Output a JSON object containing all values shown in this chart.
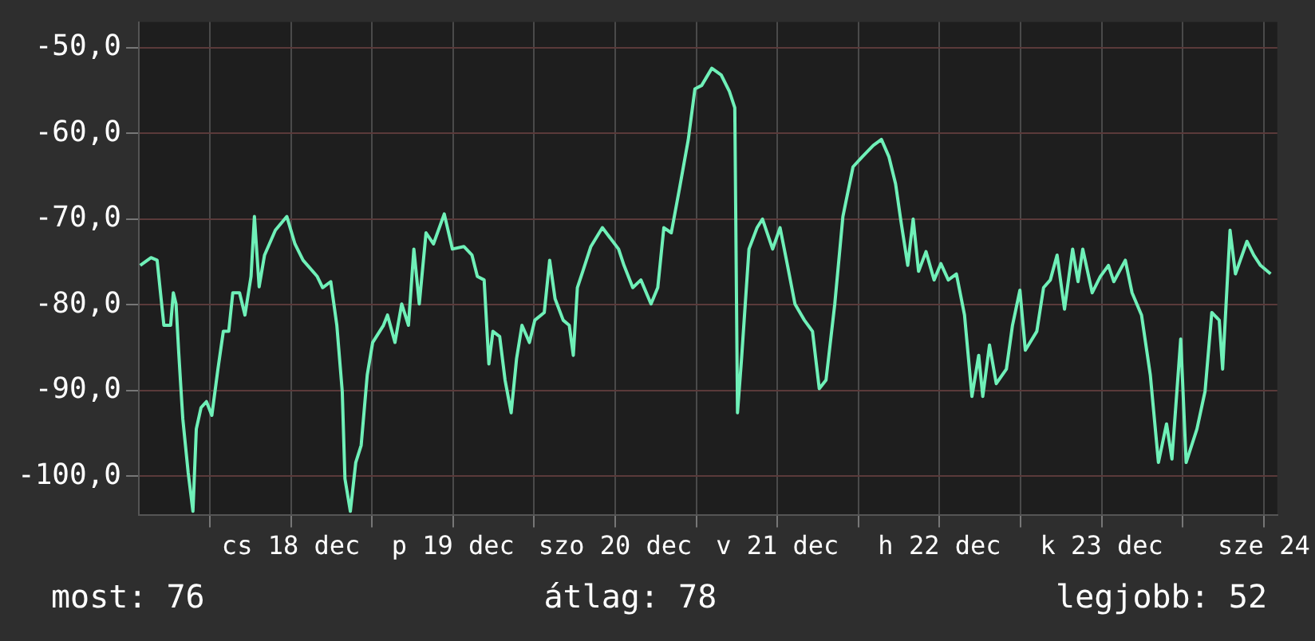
{
  "chart_data": {
    "type": "line",
    "x": [
      "--12-17T13:42",
      "--12-17T15:18",
      "--12-17T16:12",
      "--12-17T16:42",
      "--12-17T17:12",
      "--12-17T18:12",
      "--12-17T18:36",
      "--12-17T19:00",
      "--12-17T19:24",
      "--12-17T20:00",
      "--12-17T20:48",
      "--12-17T21:30",
      "--12-17T22:00",
      "--12-17T22:42",
      "--12-17T23:30",
      "--12-18T00:18",
      "--12-18T01:12",
      "--12-18T02:00",
      "--12-18T02:48",
      "--12-18T03:24",
      "--12-18T04:24",
      "--12-18T05:12",
      "--12-18T06:06",
      "--12-18T06:36",
      "--12-18T07:18",
      "--12-18T08:06",
      "--12-18T09:42",
      "--12-18T11:24",
      "--12-18T12:36",
      "--12-18T13:48",
      "--12-18T15:54",
      "--12-18T16:42",
      "--12-18T17:54",
      "--12-18T18:48",
      "--12-18T19:36",
      "--12-18T20:00",
      "--12-18T20:48",
      "--12-18T21:36",
      "--12-18T22:24",
      "--12-18T23:18",
      "--12-19T00:06",
      "--12-19T01:42",
      "--12-19T02:18",
      "--12-19T03:24",
      "--12-19T04:24",
      "--12-19T05:24",
      "--12-19T06:12",
      "--12-19T07:00",
      "--12-19T08:00",
      "--12-19T09:06",
      "--12-19T10:42",
      "--12-19T11:54",
      "--12-19T13:36",
      "--12-19T14:48",
      "--12-19T15:36",
      "--12-19T16:36",
      "--12-19T17:18",
      "--12-19T17:54",
      "--12-19T18:54",
      "--12-19T19:42",
      "--12-19T20:36",
      "--12-19T21:24",
      "--12-19T22:12",
      "--12-19T23:18",
      "--12-20T00:06",
      "--12-20T01:30",
      "--12-20T02:18",
      "--12-20T03:06",
      "--12-20T04:18",
      "--12-20T05:12",
      "--12-20T05:48",
      "--12-20T06:24",
      "--12-20T07:12",
      "--12-20T08:24",
      "--12-20T10:06",
      "--12-20T12:30",
      "--12-20T13:18",
      "--12-20T14:36",
      "--12-20T15:48",
      "--12-20T17:18",
      "--12-20T18:18",
      "--12-20T19:12",
      "--12-20T20:18",
      "--12-20T21:30",
      "--12-20T22:48",
      "--12-20T23:48",
      "--12-21T00:48",
      "--12-21T02:18",
      "--12-21T03:42",
      "--12-21T04:54",
      "--12-21T05:42",
      "--12-21T06:06",
      "--12-21T06:42",
      "--12-21T07:48",
      "--12-21T09:00",
      "--12-21T09:48",
      "--12-21T11:18",
      "--12-21T12:24",
      "--12-21T13:30",
      "--12-21T14:36",
      "--12-21T16:00",
      "--12-21T17:12",
      "--12-21T18:12",
      "--12-21T19:12",
      "--12-21T20:30",
      "--12-21T21:42",
      "--12-21T23:12",
      "--12-22T00:36",
      "--12-22T02:12",
      "--12-22T03:24",
      "--12-22T04:30",
      "--12-22T05:30",
      "--12-22T06:18",
      "--12-22T07:18",
      "--12-22T08:06",
      "--12-22T08:54",
      "--12-22T10:00",
      "--12-22T11:12",
      "--12-22T12:12",
      "--12-22T13:18",
      "--12-22T14:30",
      "--12-22T15:42",
      "--12-22T16:48",
      "--12-22T17:48",
      "--12-22T18:24",
      "--12-22T19:24",
      "--12-22T20:24",
      "--12-22T21:54",
      "--12-22T22:48",
      "--12-22T23:54",
      "--12-23T00:42",
      "--12-23T02:24",
      "--12-23T03:24",
      "--12-23T04:24",
      "--12-23T05:24",
      "--12-23T06:30",
      "--12-23T07:42",
      "--12-23T08:30",
      "--12-23T09:12",
      "--12-23T10:36",
      "--12-23T11:48",
      "--12-23T13:00",
      "--12-23T13:48",
      "--12-23T15:30",
      "--12-23T16:30",
      "--12-23T17:54",
      "--12-23T19:12",
      "--12-23T20:24",
      "--12-23T21:36",
      "--12-23T22:24",
      "--12-23T23:42",
      "--12-24T00:30",
      "--12-24T02:06",
      "--12-24T03:18",
      "--12-24T04:18",
      "--12-24T05:24",
      "--12-24T05:54",
      "--12-24T07:00",
      "--12-24T07:48",
      "--12-24T09:30",
      "--12-24T10:30",
      "--12-24T11:30",
      "--12-24T13:00"
    ],
    "series": [
      {
        "color": "#6ff0b8",
        "values": [
          -75.4,
          -74.5,
          -74.8,
          -78.6,
          -82.4,
          -82.4,
          -78.6,
          -79.9,
          -85.6,
          -93.3,
          -99.6,
          -104.1,
          -94.5,
          -92.0,
          -91.3,
          -92.9,
          -87.5,
          -83.1,
          -83.1,
          -78.6,
          -78.6,
          -81.2,
          -76.7,
          -69.7,
          -77.9,
          -74.2,
          -71.3,
          -69.7,
          -72.9,
          -74.8,
          -76.7,
          -78.0,
          -77.3,
          -82.4,
          -90.1,
          -100.3,
          -104.1,
          -98.4,
          -96.4,
          -88.2,
          -84.4,
          -82.4,
          -81.2,
          -84.4,
          -79.9,
          -82.4,
          -73.5,
          -79.9,
          -71.6,
          -72.9,
          -69.4,
          -73.5,
          -73.2,
          -74.2,
          -76.7,
          -77.1,
          -86.9,
          -83.1,
          -83.7,
          -88.8,
          -92.6,
          -86.3,
          -82.4,
          -84.4,
          -81.8,
          -80.9,
          -74.8,
          -79.3,
          -81.8,
          -82.4,
          -85.9,
          -78.0,
          -76.1,
          -73.2,
          -71.0,
          -73.5,
          -75.4,
          -78.0,
          -77.1,
          -79.9,
          -78.0,
          -71.0,
          -71.6,
          -66.5,
          -60.8,
          -54.8,
          -54.4,
          -52.4,
          -53.2,
          -55.1,
          -57.0,
          -92.6,
          -86.3,
          -73.5,
          -71.0,
          -70.0,
          -73.5,
          -71.0,
          -75.4,
          -79.9,
          -81.8,
          -83.1,
          -89.8,
          -88.8,
          -79.9,
          -69.7,
          -63.9,
          -62.7,
          -61.4,
          -60.7,
          -62.7,
          -65.9,
          -70.3,
          -75.4,
          -70.0,
          -76.1,
          -73.8,
          -77.1,
          -75.2,
          -77.1,
          -76.4,
          -81.2,
          -90.7,
          -85.9,
          -90.7,
          -84.7,
          -89.2,
          -87.5,
          -82.4,
          -78.3,
          -85.3,
          -83.1,
          -78.0,
          -77.1,
          -74.2,
          -80.5,
          -73.5,
          -77.3,
          -73.5,
          -78.6,
          -76.7,
          -75.4,
          -77.3,
          -74.8,
          -78.6,
          -81.2,
          -88.2,
          -98.4,
          -93.9,
          -98.0,
          -84.0,
          -98.4,
          -94.5,
          -90.1,
          -80.9,
          -81.8,
          -87.5,
          -71.3,
          -76.4,
          -72.6,
          -74.2,
          -75.4,
          -76.4
        ]
      }
    ],
    "xlim": [
      "--12-17T13:30",
      "--12-24T14:00"
    ],
    "xticks": [
      {
        "value": "--12-18T00:00",
        "label": null
      },
      {
        "value": "--12-18T12:00",
        "label": "cs 18 dec"
      },
      {
        "value": "--12-19T00:00",
        "label": null
      },
      {
        "value": "--12-19T12:00",
        "label": "p 19 dec"
      },
      {
        "value": "--12-20T00:00",
        "label": null
      },
      {
        "value": "--12-20T12:00",
        "label": "szo 20 dec"
      },
      {
        "value": "--12-21T00:00",
        "label": null
      },
      {
        "value": "--12-21T12:00",
        "label": "v 21 dec"
      },
      {
        "value": "--12-22T00:00",
        "label": null
      },
      {
        "value": "--12-22T12:00",
        "label": "h 22 dec"
      },
      {
        "value": "--12-23T00:00",
        "label": null
      },
      {
        "value": "--12-23T12:00",
        "label": "k 23 dec"
      },
      {
        "value": "--12-24T00:00",
        "label": null
      },
      {
        "value": "--12-24T12:00",
        "label": "sze 24"
      }
    ],
    "ylim": [
      -104.5,
      -47
    ],
    "yticks": [
      {
        "value": -100,
        "label": "-100,0"
      },
      {
        "value": -90,
        "label": "-90,0"
      },
      {
        "value": -80,
        "label": "-80,0"
      },
      {
        "value": -70,
        "label": "-70,0"
      },
      {
        "value": -60,
        "label": "-60,0"
      },
      {
        "value": -50,
        "label": "-50,0"
      }
    ],
    "grid": true,
    "legend": false,
    "marker": "none",
    "line_style": "solid",
    "annotations": [
      "most: 76",
      "átlag: 78",
      "legjobb: 52"
    ]
  }
}
